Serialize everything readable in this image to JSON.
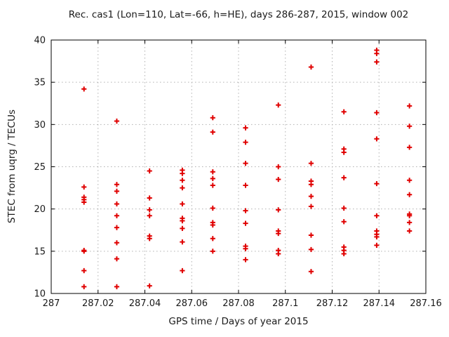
{
  "chart_data": {
    "type": "scatter",
    "title": "Rec. cas1 (Lon=110, Lat=-66, h=HE), days 286-287, 2015, window 002",
    "xlabel": "GPS time / Days of year 2015",
    "ylabel": "STEC from uqrg / TECUs",
    "xlim": [
      287.0,
      287.16
    ],
    "ylim": [
      10,
      40
    ],
    "xtick_values": [
      287.0,
      287.02,
      287.04,
      287.06,
      287.08,
      287.1,
      287.12,
      287.14,
      287.16
    ],
    "xtick_labels": [
      "287",
      "287.02",
      "287.04",
      "287.06",
      "287.08",
      "287.1",
      "287.12",
      "287.14",
      "287.16"
    ],
    "ytick_values": [
      10,
      15,
      20,
      25,
      30,
      35,
      40
    ],
    "ytick_labels": [
      "10",
      "15",
      "20",
      "25",
      "30",
      "35",
      "40"
    ],
    "grid": true,
    "legend_position": "none",
    "marker_shape": "plus",
    "marker_color": "#e00000",
    "grid_color": "#b0b0b0",
    "border_color": "#000000",
    "points": [
      [
        287.014,
        34.2
      ],
      [
        287.014,
        22.6
      ],
      [
        287.014,
        21.4
      ],
      [
        287.014,
        21.1
      ],
      [
        287.014,
        20.8
      ],
      [
        287.014,
        15.1
      ],
      [
        287.014,
        15.0
      ],
      [
        287.014,
        12.7
      ],
      [
        287.014,
        10.8
      ],
      [
        287.028,
        30.4
      ],
      [
        287.028,
        22.9
      ],
      [
        287.028,
        22.1
      ],
      [
        287.028,
        20.6
      ],
      [
        287.028,
        19.2
      ],
      [
        287.028,
        17.8
      ],
      [
        287.028,
        16.0
      ],
      [
        287.028,
        14.1
      ],
      [
        287.028,
        10.8
      ],
      [
        287.042,
        24.5
      ],
      [
        287.042,
        21.3
      ],
      [
        287.042,
        19.9
      ],
      [
        287.042,
        19.2
      ],
      [
        287.042,
        16.8
      ],
      [
        287.042,
        16.5
      ],
      [
        287.042,
        10.9
      ],
      [
        287.056,
        24.6
      ],
      [
        287.056,
        24.2
      ],
      [
        287.056,
        23.4
      ],
      [
        287.056,
        22.5
      ],
      [
        287.056,
        20.6
      ],
      [
        287.056,
        18.9
      ],
      [
        287.056,
        18.6
      ],
      [
        287.056,
        17.7
      ],
      [
        287.056,
        16.1
      ],
      [
        287.056,
        12.7
      ],
      [
        287.069,
        30.8
      ],
      [
        287.069,
        29.1
      ],
      [
        287.069,
        24.4
      ],
      [
        287.069,
        23.6
      ],
      [
        287.069,
        22.8
      ],
      [
        287.069,
        20.1
      ],
      [
        287.069,
        18.4
      ],
      [
        287.069,
        18.1
      ],
      [
        287.069,
        16.5
      ],
      [
        287.069,
        15.0
      ],
      [
        287.083,
        29.6
      ],
      [
        287.083,
        27.9
      ],
      [
        287.083,
        25.4
      ],
      [
        287.083,
        22.8
      ],
      [
        287.083,
        19.8
      ],
      [
        287.083,
        18.3
      ],
      [
        287.083,
        15.6
      ],
      [
        287.083,
        15.3
      ],
      [
        287.083,
        14.0
      ],
      [
        287.097,
        32.3
      ],
      [
        287.097,
        25.0
      ],
      [
        287.097,
        23.5
      ],
      [
        287.097,
        19.9
      ],
      [
        287.097,
        17.4
      ],
      [
        287.097,
        17.1
      ],
      [
        287.097,
        15.1
      ],
      [
        287.097,
        14.7
      ],
      [
        287.111,
        36.8
      ],
      [
        287.111,
        25.4
      ],
      [
        287.111,
        23.3
      ],
      [
        287.111,
        22.9
      ],
      [
        287.111,
        21.5
      ],
      [
        287.111,
        20.3
      ],
      [
        287.111,
        16.9
      ],
      [
        287.111,
        15.2
      ],
      [
        287.111,
        12.6
      ],
      [
        287.125,
        31.5
      ],
      [
        287.125,
        27.1
      ],
      [
        287.125,
        26.7
      ],
      [
        287.125,
        23.7
      ],
      [
        287.125,
        20.1
      ],
      [
        287.125,
        18.5
      ],
      [
        287.125,
        15.5
      ],
      [
        287.125,
        15.1
      ],
      [
        287.125,
        14.7
      ],
      [
        287.139,
        38.8
      ],
      [
        287.139,
        38.4
      ],
      [
        287.139,
        37.4
      ],
      [
        287.139,
        31.4
      ],
      [
        287.139,
        28.3
      ],
      [
        287.139,
        23.0
      ],
      [
        287.139,
        19.2
      ],
      [
        287.139,
        17.4
      ],
      [
        287.139,
        17.0
      ],
      [
        287.139,
        16.7
      ],
      [
        287.139,
        15.7
      ],
      [
        287.153,
        32.2
      ],
      [
        287.153,
        29.8
      ],
      [
        287.153,
        27.3
      ],
      [
        287.153,
        23.4
      ],
      [
        287.153,
        21.7
      ],
      [
        287.153,
        19.4
      ],
      [
        287.153,
        19.2
      ],
      [
        287.153,
        18.4
      ],
      [
        287.153,
        17.4
      ]
    ]
  }
}
